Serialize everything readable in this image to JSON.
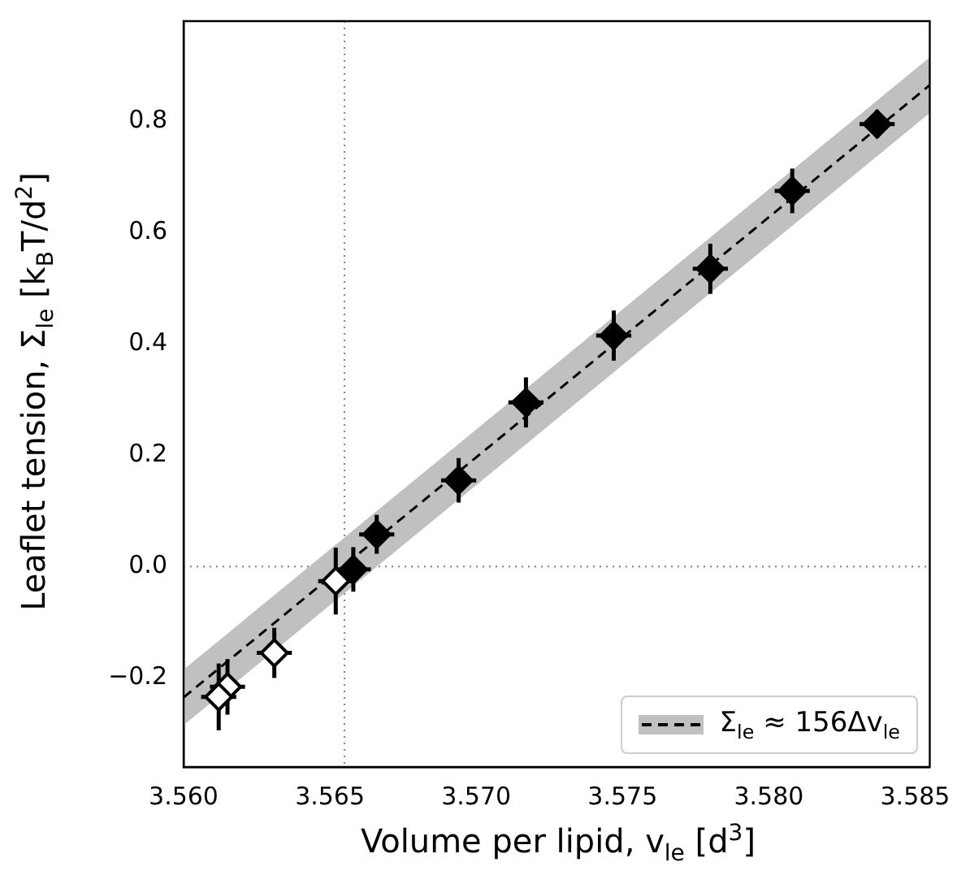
{
  "chart_data": {
    "type": "scatter",
    "xlabel": "Volume per lipid, v$_{le}$ [d$^{3}$]",
    "ylabel": "Leaflet tension, Σ$_{le}$ [k$_{B}$T/d$^{2}$]",
    "xlim": [
      3.56,
      3.5855
    ],
    "ylim": [
      -0.36,
      0.98
    ],
    "xticks": [
      {
        "value": 3.56,
        "label": "3.560"
      },
      3.565,
      {
        "value": 3.57,
        "label": "3.570"
      },
      3.575,
      {
        "value": 3.58,
        "label": "3.580"
      },
      3.585
    ],
    "yticks": [
      {
        "value": -0.2,
        "label": "−0.2"
      },
      {
        "value": 0,
        "label": "0.0"
      },
      0.2,
      0.4,
      0.6,
      0.8
    ],
    "marker": "diamond",
    "grid": false,
    "legend": "bottom right",
    "series": [
      {
        "type": "line",
        "name": "Σ$_{le}$ ≈ 156Δv$_{le}$",
        "color": "#000000",
        "line_style": "dashed",
        "marker": "none",
        "x": [
          3.56,
          3.5855
        ],
        "values": [
          -0.235,
          0.865
        ],
        "lower": [
          -0.285,
          0.815
        ],
        "upper": [
          -0.185,
          0.915
        ]
      },
      {
        "color": "#000000",
        "x": [
          3.5658,
          3.5666,
          3.5694,
          3.5717,
          3.5747,
          3.578,
          3.5808,
          3.5837
        ],
        "values": [
          -0.005,
          0.058,
          0.155,
          0.295,
          0.415,
          0.535,
          0.675,
          0.795
        ],
        "errors": [
          0.04,
          0.035,
          0.04,
          0.045,
          0.045,
          0.045,
          0.04,
          0.025
        ],
        "xerrors": [
          0.0006,
          0.0006,
          0.0006,
          0.0006,
          0.0006,
          0.0006,
          0.0006,
          0.0006
        ]
      },
      {
        "color": "#ffffff",
        "x": [
          3.5652,
          3.5631,
          3.5615,
          3.5612
        ],
        "values": [
          -0.026,
          -0.155,
          -0.216,
          -0.234
        ],
        "errors": [
          0.06,
          0.045,
          0.05,
          0.06
        ],
        "xerrors": [
          0.0006,
          0.0006,
          0.0006,
          0.0006
        ]
      }
    ],
    "ref_lines": [
      {
        "axis": "x",
        "value": 3.5655,
        "color": "#808080",
        "line_style": "dotted"
      },
      {
        "axis": "y",
        "value": 0,
        "color": "#808080",
        "line_style": "dotted"
      }
    ]
  }
}
